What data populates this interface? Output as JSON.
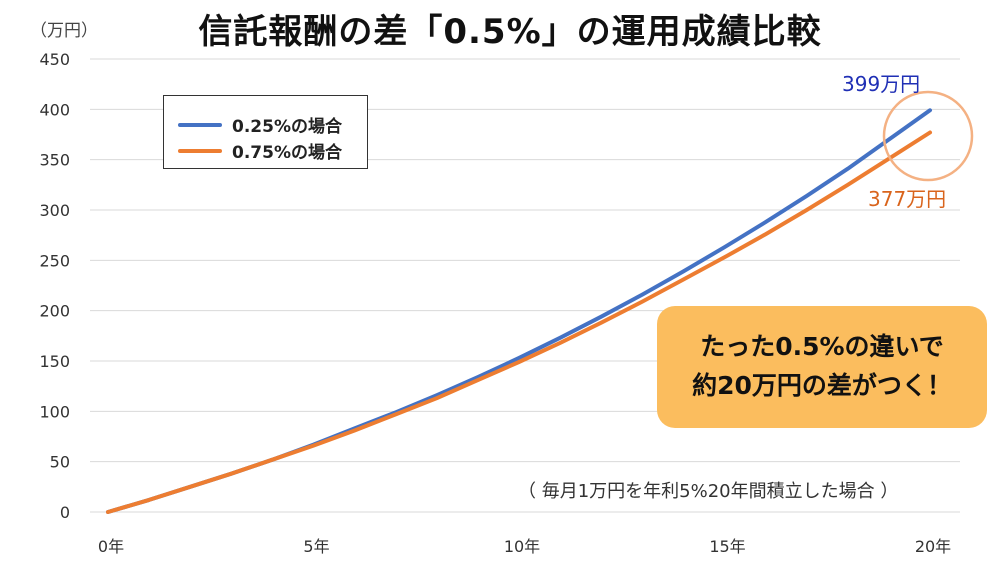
{
  "title": "信託報酬の差「0.5%」の運用成績比較",
  "unit_label": "（万円）",
  "legend": [
    {
      "label": "0.25%の場合",
      "color": "#4472c4"
    },
    {
      "label": "0.75%の場合",
      "color": "#ed7d31"
    }
  ],
  "callout": {
    "line1": "たった0.5%の違いで",
    "line2": "約20万円の差がつく！"
  },
  "note": "（ 毎月1万円を年利5%20年間積立した場合 ）",
  "end_labels": {
    "blue": "399万円",
    "orange": "377万円"
  },
  "highlight_color": "#f4b183",
  "chart_data": {
    "type": "line",
    "x": [
      0,
      1,
      2,
      3,
      4,
      5,
      6,
      7,
      8,
      9,
      10,
      11,
      12,
      13,
      14,
      15,
      16,
      17,
      18,
      19,
      20
    ],
    "series": [
      {
        "name": "0.25%の場合",
        "color": "#4472c4",
        "values": [
          0,
          12,
          25,
          38,
          52,
          67,
          83,
          99,
          116,
          134,
          153,
          173,
          194,
          216,
          239,
          263,
          288,
          314,
          341,
          370,
          399
        ]
      },
      {
        "name": "0.75%の場合",
        "color": "#ed7d31",
        "values": [
          0,
          12,
          25,
          38,
          52,
          66,
          81,
          97,
          113,
          131,
          149,
          168,
          188,
          209,
          231,
          253,
          276,
          300,
          325,
          351,
          377
        ]
      }
    ],
    "x_ticks": [
      {
        "value": 0,
        "label": "0年"
      },
      {
        "value": 5,
        "label": "5年"
      },
      {
        "value": 10,
        "label": "10年"
      },
      {
        "value": 15,
        "label": "15年"
      },
      {
        "value": 20,
        "label": "20年"
      }
    ],
    "y_ticks": [
      {
        "value": 0,
        "label": "0"
      },
      {
        "value": 50,
        "label": "50"
      },
      {
        "value": 100,
        "label": "100"
      },
      {
        "value": 150,
        "label": "150"
      },
      {
        "value": 200,
        "label": "200"
      },
      {
        "value": 250,
        "label": "250"
      },
      {
        "value": 300,
        "label": "300"
      },
      {
        "value": 350,
        "label": "350"
      },
      {
        "value": 400,
        "label": "400"
      },
      {
        "value": 450,
        "label": "450"
      }
    ],
    "xlim": [
      0,
      20
    ],
    "ylim": [
      0,
      450
    ],
    "grid": "horizontal",
    "legend_position": "top-left"
  }
}
